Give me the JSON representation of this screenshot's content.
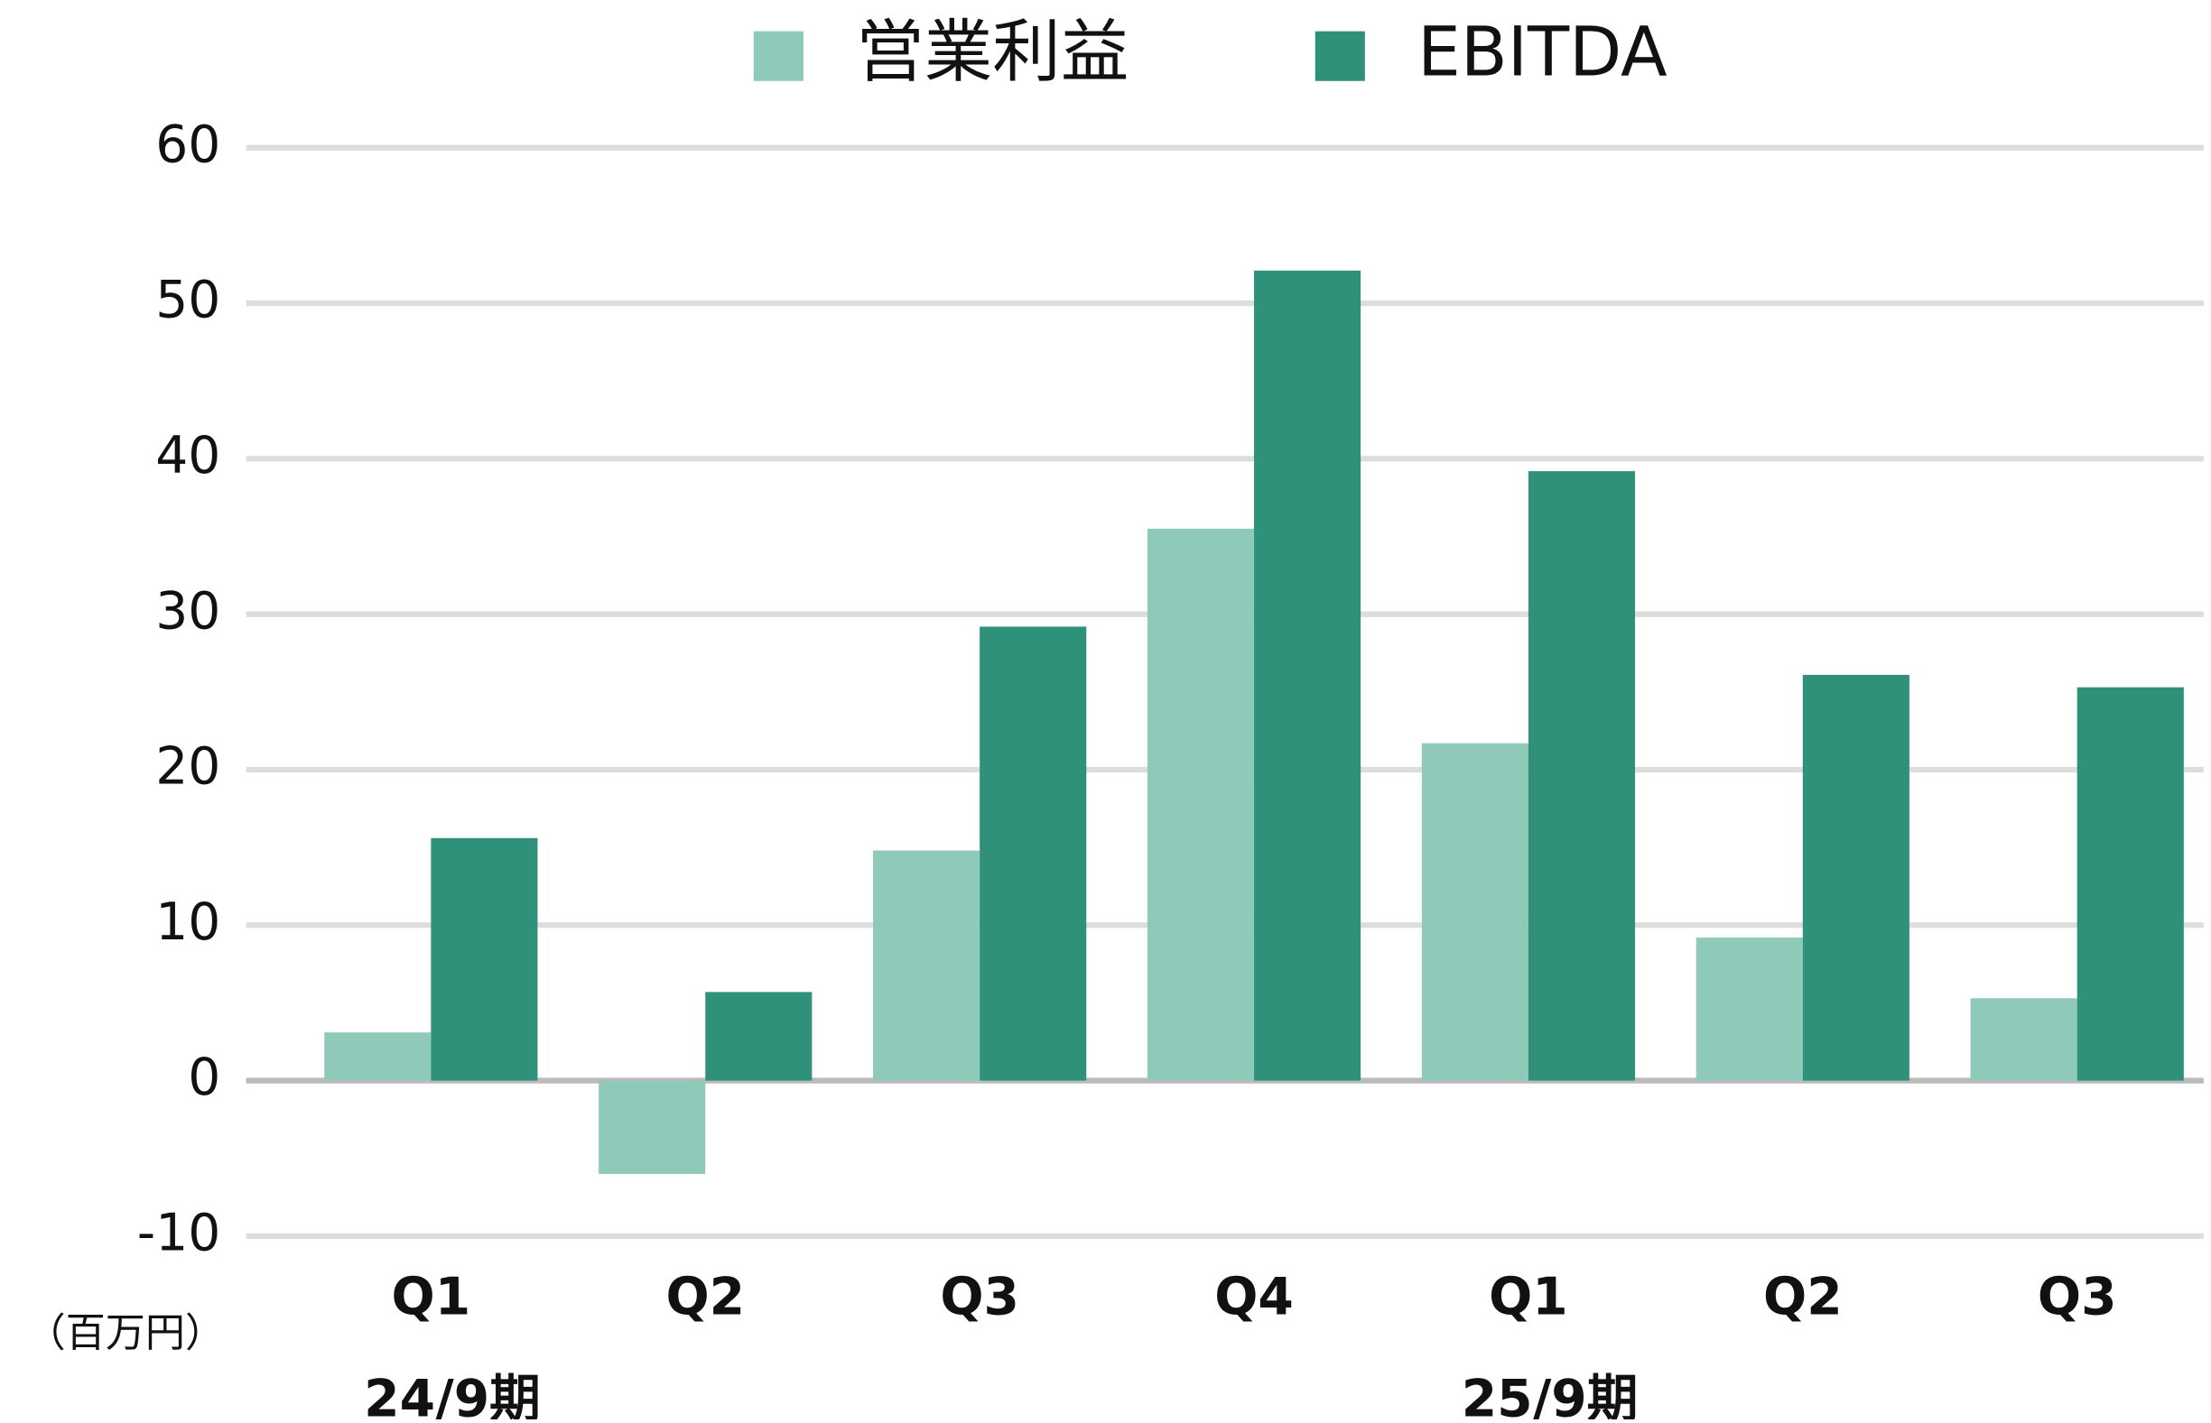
{
  "chart_data": {
    "type": "bar",
    "categories": [
      "Q1",
      "Q2",
      "Q3",
      "Q4",
      "Q1",
      "Q2",
      "Q3"
    ],
    "groups": [
      {
        "label": "24/9期",
        "span": 4
      },
      {
        "label": "25/9期",
        "span": 3
      }
    ],
    "unit_label": "（百万円）",
    "series": [
      {
        "name": "営業利益",
        "color": "#8fc9b9",
        "values": [
          3.1,
          -6.0,
          14.8,
          35.5,
          21.7,
          9.2,
          5.3
        ]
      },
      {
        "name": "EBITDA",
        "color": "#2f917a",
        "values": [
          15.6,
          5.7,
          29.2,
          52.1,
          39.2,
          26.1,
          25.3
        ]
      }
    ],
    "ylim": [
      -10,
      60
    ],
    "yticks": [
      -10,
      0,
      10,
      20,
      30,
      40,
      50,
      60
    ],
    "grid": true,
    "legend": "top"
  }
}
